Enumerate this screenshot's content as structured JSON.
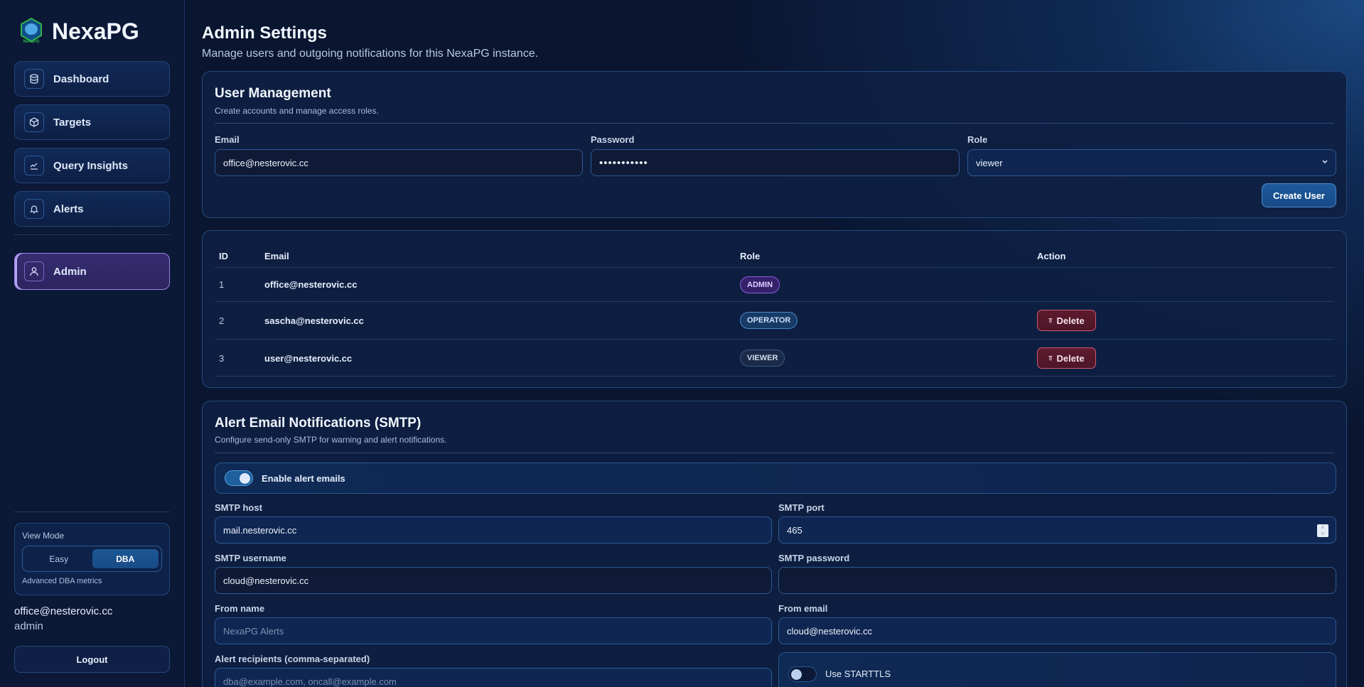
{
  "app": {
    "name": "NexaPG",
    "logo_text": "NexaPG"
  },
  "sidebar": {
    "items": [
      {
        "label": "Dashboard",
        "icon": "database-icon"
      },
      {
        "label": "Targets",
        "icon": "cube-icon"
      },
      {
        "label": "Query Insights",
        "icon": "chart-line-icon"
      },
      {
        "label": "Alerts",
        "icon": "bell-icon"
      }
    ],
    "admin": {
      "label": "Admin",
      "icon": "user-icon",
      "active": true
    },
    "view_mode": {
      "title": "View Mode",
      "options": [
        "Easy",
        "DBA"
      ],
      "selected": "DBA",
      "description": "Advanced DBA metrics"
    },
    "user": {
      "email": "office@nesterovic.cc",
      "role": "admin"
    },
    "logout_label": "Logout"
  },
  "page": {
    "title": "Admin Settings",
    "subtitle": "Manage users and outgoing notifications for this NexaPG instance."
  },
  "user_management": {
    "title": "User Management",
    "subtitle": "Create accounts and manage access roles.",
    "email_label": "Email",
    "email_value": "office@nesterovic.cc",
    "password_label": "Password",
    "password_value": "•••••••••••",
    "role_label": "Role",
    "role_value": "viewer",
    "create_label": "Create User"
  },
  "users_table": {
    "headers": [
      "ID",
      "Email",
      "Role",
      "Action"
    ],
    "rows": [
      {
        "id": "1",
        "email": "office@nesterovic.cc",
        "role": "ADMIN",
        "action": ""
      },
      {
        "id": "2",
        "email": "sascha@nesterovic.cc",
        "role": "OPERATOR",
        "action": "Delete"
      },
      {
        "id": "3",
        "email": "user@nesterovic.cc",
        "role": "VIEWER",
        "action": "Delete"
      }
    ]
  },
  "smtp": {
    "title": "Alert Email Notifications (SMTP)",
    "subtitle": "Configure send-only SMTP for warning and alert notifications.",
    "enable_label": "Enable alert emails",
    "enabled": true,
    "host_label": "SMTP host",
    "host_value": "mail.nesterovic.cc",
    "port_label": "SMTP port",
    "port_value": "465",
    "username_label": "SMTP username",
    "username_value": "cloud@nesterovic.cc",
    "password_label": "SMTP password",
    "password_value": "",
    "from_name_label": "From name",
    "from_name_placeholder": "NexaPG Alerts",
    "from_email_label": "From email",
    "from_email_value": "cloud@nesterovic.cc",
    "recipients_label": "Alert recipients (comma-separated)",
    "recipients_placeholder": "dba@example.com, oncall@example.com",
    "starttls_label": "Use STARTTLS",
    "starttls": false
  },
  "colors": {
    "accent": "#1e5f9e",
    "admin_active": "#362c70",
    "danger": "#5e1a2e",
    "background": "#0a1630"
  }
}
